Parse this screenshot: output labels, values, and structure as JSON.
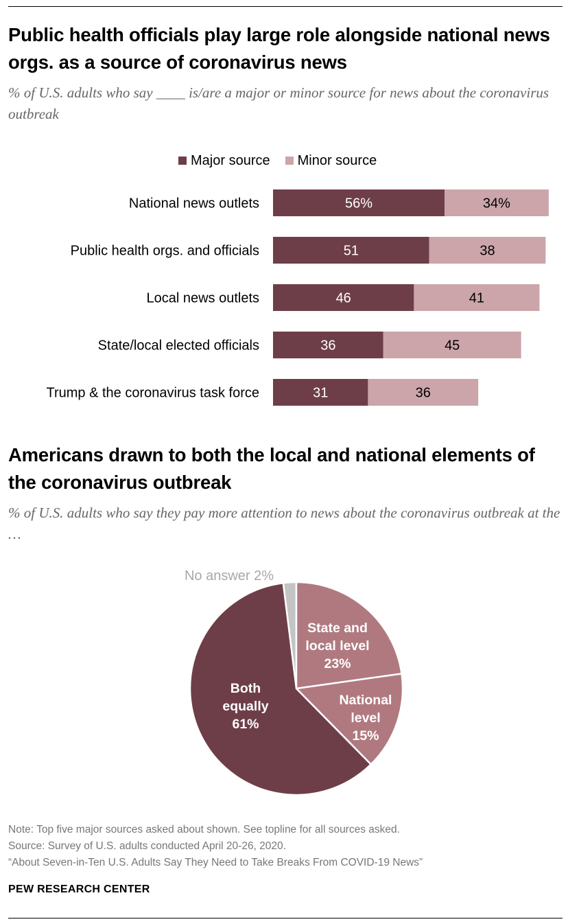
{
  "colors": {
    "major": "#6e3e48",
    "minor": "#cba5aa",
    "state_local": "#b07980",
    "national": "#b07980",
    "both": "#6e3e48",
    "no_answer": "#c4c4c4"
  },
  "chart1": {
    "title": "Public health officials play large role alongside national news orgs. as a source of coronavirus news",
    "subtitle": "% of U.S. adults who say ____ is/are a major or minor source for news about the coronavirus outbreak",
    "legend": {
      "major": "Major source",
      "minor": "Minor source"
    }
  },
  "chart2": {
    "title": "Americans drawn to both the local and national elements of the coronavirus outbreak",
    "subtitle": "% of U.S. adults who say they pay more attention to news about the coronavirus outbreak at the …"
  },
  "chart_data": [
    {
      "type": "bar",
      "orientation": "horizontal",
      "stacked": true,
      "categories": [
        "National news outlets",
        "Public health orgs. and officials",
        "Local news outlets",
        "State/local elected officials",
        "Trump & the coronavirus task force"
      ],
      "series": [
        {
          "name": "Major source",
          "values": [
            56,
            51,
            46,
            36,
            31
          ],
          "labels": [
            "56%",
            "51",
            "46",
            "36",
            "31"
          ]
        },
        {
          "name": "Minor source",
          "values": [
            34,
            38,
            41,
            45,
            36
          ],
          "labels": [
            "34%",
            "38",
            "41",
            "45",
            "36"
          ]
        }
      ],
      "xlim": [
        0,
        100
      ]
    },
    {
      "type": "pie",
      "slices": [
        {
          "name": "No answer",
          "value": 2,
          "label_lines": [
            "No answer 2%"
          ]
        },
        {
          "name": "State and local level",
          "value": 23,
          "label_lines": [
            "State and",
            "local level",
            "23%"
          ]
        },
        {
          "name": "National level",
          "value": 15,
          "label_lines": [
            "National",
            "level",
            "15%"
          ]
        },
        {
          "name": "Both equally",
          "value": 61,
          "label_lines": [
            "Both",
            "equally",
            "61%"
          ]
        }
      ]
    }
  ],
  "footer": {
    "note": "Note: Top five major sources asked about shown. See topline for all sources asked.",
    "source": "Source: Survey of U.S. adults conducted April 20-26, 2020.",
    "report": "“About Seven-in-Ten U.S. Adults Say They Need to Take Breaks From COVID-19 News”",
    "brand": "PEW RESEARCH CENTER"
  }
}
